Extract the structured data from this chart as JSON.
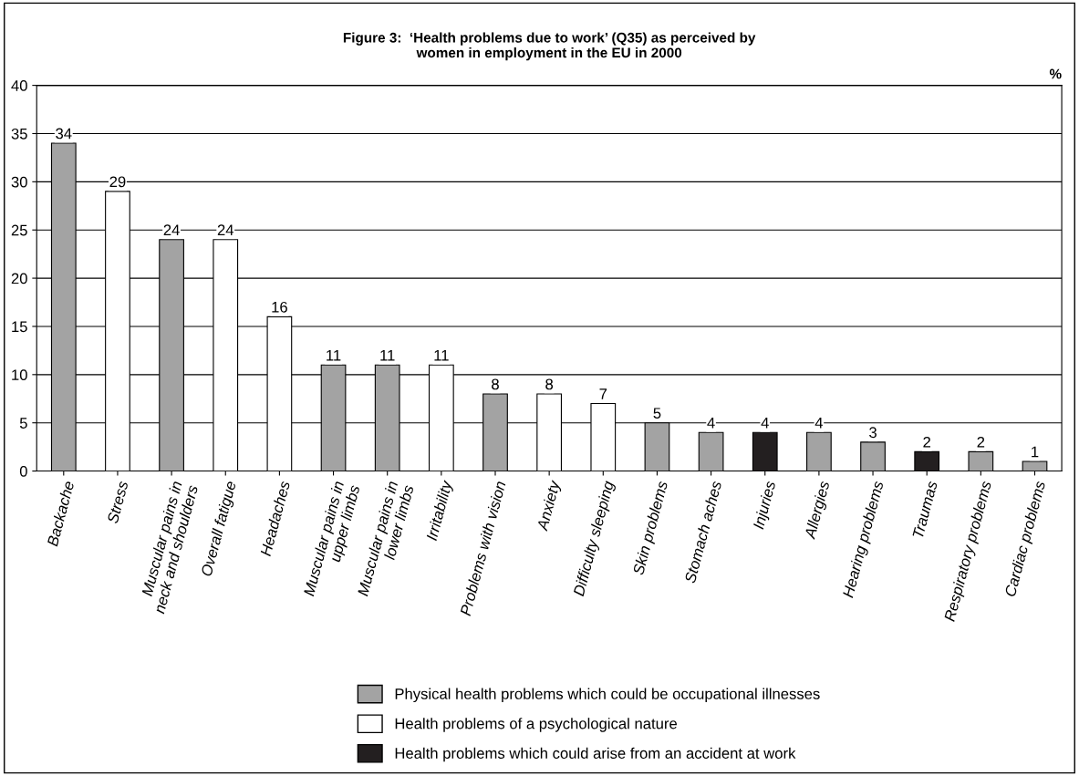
{
  "chart_data": {
    "type": "bar",
    "title": "Figure 3:  ‘Health problems due to work’ (Q35) as perceived by\nwomen in employment in the EU in 2000",
    "ylabel": "%",
    "categories": [
      "Backache",
      "Stress",
      "Muscular pains in\nneck and shoulders",
      "Overall fatigue",
      "Headaches",
      "Muscular pains in\nupper limbs",
      "Muscular pains in\nlower limbs",
      "Irritability",
      "Problems with vision",
      "Anxiety",
      "Difficulty sleeping",
      "Skin problems",
      "Stomach aches",
      "Injuries",
      "Allergies",
      "Hearing problems",
      "Traumas",
      "Respiratory problems",
      "Cardiac problems"
    ],
    "series": [
      {
        "name": "Physical health problems which could be occupational illnesses",
        "color": "#a3a3a3",
        "values": [
          34,
          null,
          24,
          null,
          null,
          11,
          11,
          null,
          8,
          null,
          null,
          5,
          4,
          null,
          4,
          3,
          null,
          2,
          1
        ]
      },
      {
        "name": "Health problems of a psychological nature",
        "color": "#ffffff",
        "values": [
          null,
          29,
          null,
          24,
          16,
          null,
          null,
          11,
          null,
          8,
          7,
          null,
          null,
          null,
          null,
          null,
          null,
          null,
          null
        ]
      },
      {
        "name": "Health problems which could arise from an accident at work",
        "color": "#231f20",
        "values": [
          null,
          null,
          null,
          null,
          null,
          null,
          null,
          null,
          null,
          null,
          null,
          null,
          null,
          4,
          null,
          null,
          2,
          null,
          null
        ]
      }
    ],
    "ylim": [
      0,
      40
    ],
    "yticks": [
      0,
      5,
      10,
      15,
      20,
      25,
      30,
      35,
      40
    ],
    "grid": "y",
    "legend": "bottom",
    "data_labels": true
  }
}
